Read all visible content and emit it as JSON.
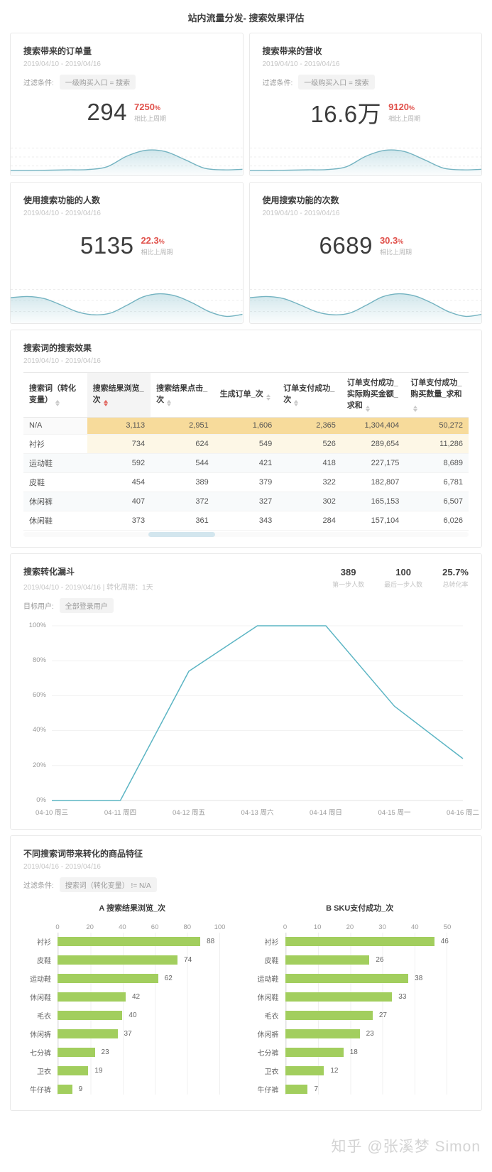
{
  "page": {
    "title": "站内流量分发- 搜索效果评估",
    "watermark": "知乎 @张溪梦 Simon"
  },
  "colors": {
    "spark_line": "#74b3c1",
    "spark_fill": "#aad2db",
    "funnel_line": "#5cb5c4",
    "bar_green": "#a2ce5e",
    "change_red": "#e0504a",
    "highlight_gold": "#f7db9b",
    "highlight_cream": "#fdf7e6"
  },
  "kpi_cards": [
    {
      "title": "搜索带来的订单量",
      "date_range": "2019/04/10 - 2019/04/16",
      "filter_label": "过滤条件:",
      "filter_value": "一级购买入口 = 搜索",
      "value": "294",
      "change": "7250",
      "change_suffix": "%",
      "change_note": "相比上周期"
    },
    {
      "title": "搜索带来的营收",
      "date_range": "2019/04/10 - 2019/04/16",
      "filter_label": "过滤条件:",
      "filter_value": "一级购买入口 = 搜索",
      "value": "16.6万",
      "change": "9120",
      "change_suffix": "%",
      "change_note": "相比上周期"
    },
    {
      "title": "使用搜索功能的人数",
      "date_range": "2019/04/10 - 2019/04/16",
      "value": "5135",
      "change": "22.3",
      "change_suffix": "%",
      "change_note": "相比上周期"
    },
    {
      "title": "使用搜索功能的次数",
      "date_range": "2019/04/10 - 2019/04/16",
      "value": "6689",
      "change": "30.3",
      "change_suffix": "%",
      "change_note": "相比上周期"
    }
  ],
  "search_table": {
    "title": "搜索词的搜索效果",
    "date_range": "2019/04/10 - 2019/04/16",
    "columns": [
      "搜索词（转化变量）",
      "搜索结果浏览_次",
      "搜索结果点击_次",
      "生成订单_次",
      "订单支付成功_次",
      "订单支付成功_实际购买金额_求和",
      "订单支付成功_购买数量_求和"
    ],
    "sorted_column_index": 1,
    "rows": [
      [
        "N/A",
        "3,113",
        "2,951",
        "1,606",
        "2,365",
        "1,304,404",
        "50,272"
      ],
      [
        "衬衫",
        "734",
        "624",
        "549",
        "526",
        "289,654",
        "11,286"
      ],
      [
        "运动鞋",
        "592",
        "544",
        "421",
        "418",
        "227,175",
        "8,689"
      ],
      [
        "皮鞋",
        "454",
        "389",
        "379",
        "322",
        "182,807",
        "6,781"
      ],
      [
        "休闲裤",
        "407",
        "372",
        "327",
        "302",
        "165,153",
        "6,507"
      ],
      [
        "休闲鞋",
        "373",
        "361",
        "343",
        "284",
        "157,104",
        "6,026"
      ]
    ]
  },
  "funnel": {
    "title": "搜索转化漏斗",
    "subtitle": "2019/04/10 - 2019/04/16 | 转化周期：1天",
    "target_label": "目标用户:",
    "target_value": "全部登录用户",
    "stats": [
      {
        "value": "389",
        "label": "第一步人数"
      },
      {
        "value": "100",
        "label": "最后一步人数"
      },
      {
        "value": "25.7%",
        "label": "总转化率"
      }
    ]
  },
  "products": {
    "title": "不同搜索词带来转化的商品特征",
    "date_range": "2019/04/16 - 2019/04/16",
    "filter_label": "过滤条件:",
    "filter_value": "搜索词（转化变量） != N/A"
  },
  "chart_data": [
    {
      "type": "area",
      "name": "orders-sparkline",
      "x": "time (relative)",
      "values": [
        10,
        10,
        11,
        12,
        13,
        22,
        55,
        74,
        70,
        45,
        18,
        12,
        14
      ],
      "ylim": [
        0,
        100
      ]
    },
    {
      "type": "area",
      "name": "revenue-sparkline",
      "x": "time (relative)",
      "values": [
        10,
        10,
        11,
        12,
        13,
        22,
        55,
        74,
        70,
        45,
        18,
        12,
        14
      ],
      "ylim": [
        0,
        100
      ]
    },
    {
      "type": "area",
      "name": "search-users-sparkline",
      "x": "time (relative)",
      "values": [
        60,
        63,
        58,
        42,
        24,
        16,
        20,
        40,
        62,
        70,
        64,
        46,
        24,
        12,
        17
      ],
      "ylim": [
        0,
        100
      ]
    },
    {
      "type": "area",
      "name": "search-count-sparkline",
      "x": "time (relative)",
      "values": [
        60,
        63,
        58,
        42,
        24,
        16,
        20,
        40,
        62,
        70,
        64,
        46,
        24,
        12,
        17
      ],
      "ylim": [
        0,
        100
      ]
    },
    {
      "type": "line",
      "name": "funnel-conversion-trend",
      "categories": [
        "04-10 周三",
        "04-11 周四",
        "04-12 周五",
        "04-13 周六",
        "04-14 周日",
        "04-15 周一",
        "04-16 周二"
      ],
      "values": [
        0,
        0,
        74,
        100,
        100,
        54,
        24
      ],
      "y_ticks": [
        "0%",
        "20%",
        "40%",
        "60%",
        "80%",
        "100%"
      ],
      "ylim": [
        0,
        100
      ],
      "grid": true,
      "legend": false
    },
    {
      "type": "bar",
      "orientation": "horizontal",
      "title": "A 搜索结果浏览_次",
      "categories": [
        "衬衫",
        "皮鞋",
        "运动鞋",
        "休闲鞋",
        "毛衣",
        "休闲裤",
        "七分裤",
        "卫衣",
        "牛仔裤"
      ],
      "values": [
        88,
        74,
        62,
        42,
        40,
        37,
        23,
        19,
        9
      ],
      "xlim": [
        0,
        100
      ],
      "ticks": [
        0,
        20,
        40,
        60,
        80,
        100
      ]
    },
    {
      "type": "bar",
      "orientation": "horizontal",
      "title": "B SKU支付成功_次",
      "categories": [
        "衬衫",
        "皮鞋",
        "运动鞋",
        "休闲鞋",
        "毛衣",
        "休闲裤",
        "七分裤",
        "卫衣",
        "牛仔裤"
      ],
      "values": [
        46,
        26,
        38,
        33,
        27,
        23,
        18,
        12,
        7
      ],
      "xlim": [
        0,
        50
      ],
      "ticks": [
        0,
        10,
        20,
        30,
        40,
        50
      ]
    }
  ]
}
